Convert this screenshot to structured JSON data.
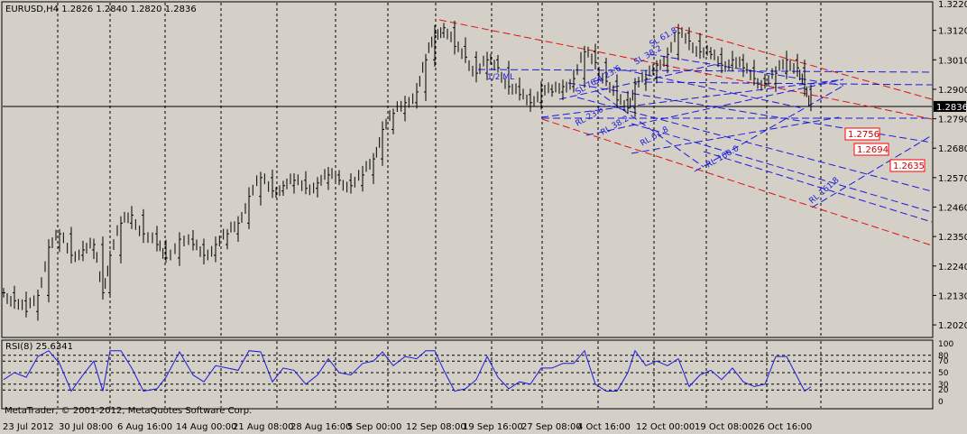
{
  "app": {
    "symbol_header": "EURUSD,H4 1.2826 1.2840 1.2820 1.2836",
    "copyright": "MetaTrader, © 2001-2012, MetaQuotes Software Corp."
  },
  "colors": {
    "background": "#d4d0c8",
    "plot_background": "#d4d0c8",
    "bars": "#000000",
    "grid": "#000000",
    "channel_red": "#e01010",
    "fib_blue": "#1a1adc",
    "rsi_line": "#1a1adc",
    "target_box": "#ff0000"
  },
  "chart_data": [
    {
      "type": "line",
      "name": "price",
      "symbol": "EURUSD",
      "timeframe": "H4",
      "ohlc": {
        "open": 1.2826,
        "high": 1.284,
        "low": 1.282,
        "close": 1.2836
      },
      "current_price": "1.2836",
      "y_ticks": [
        "1.3120",
        "1.3010",
        "1.2900",
        "1.2790",
        "1.2680",
        "1.2570",
        "1.2460",
        "1.2350",
        "1.2240",
        "1.2130",
        "1.2020"
      ],
      "y_top_label": "1.3220",
      "ylim": [
        1.2,
        1.322
      ],
      "x_ticks": [
        "23 Jul 2012",
        "30 Jul 08:00",
        "6 Aug 16:00",
        "14 Aug 00:00",
        "21 Aug 08:00",
        "28 Aug 16:00",
        "5 Sep 00:00",
        "12 Sep 08:00",
        "19 Sep 16:00",
        "27 Sep 08:00",
        "4 Oct 16:00",
        "12 Oct 00:00",
        "19 Oct 08:00",
        "26 Oct 16:00"
      ],
      "closes_approx": [
        [
          0,
          1.214
        ],
        [
          12,
          1.211
        ],
        [
          25,
          1.207
        ],
        [
          38,
          1.213
        ],
        [
          50,
          1.231
        ],
        [
          62,
          1.236
        ],
        [
          75,
          1.228
        ],
        [
          88,
          1.23
        ],
        [
          100,
          1.232
        ],
        [
          110,
          1.214
        ],
        [
          118,
          1.228
        ],
        [
          130,
          1.24
        ],
        [
          142,
          1.243
        ],
        [
          155,
          1.236
        ],
        [
          170,
          1.232
        ],
        [
          180,
          1.227
        ],
        [
          195,
          1.234
        ],
        [
          210,
          1.232
        ],
        [
          222,
          1.228
        ],
        [
          235,
          1.232
        ],
        [
          248,
          1.236
        ],
        [
          260,
          1.24
        ],
        [
          272,
          1.25
        ],
        [
          285,
          1.257
        ],
        [
          298,
          1.252
        ],
        [
          310,
          1.254
        ],
        [
          322,
          1.256
        ],
        [
          335,
          1.253
        ],
        [
          348,
          1.255
        ],
        [
          360,
          1.258
        ],
        [
          372,
          1.256
        ],
        [
          385,
          1.254
        ],
        [
          398,
          1.258
        ],
        [
          410,
          1.264
        ],
        [
          420,
          1.275
        ],
        [
          432,
          1.281
        ],
        [
          445,
          1.285
        ],
        [
          458,
          1.289
        ],
        [
          468,
          1.301
        ],
        [
          478,
          1.311
        ],
        [
          488,
          1.313
        ],
        [
          500,
          1.306
        ],
        [
          512,
          1.302
        ],
        [
          524,
          1.296
        ],
        [
          536,
          1.301
        ],
        [
          548,
          1.298
        ],
        [
          560,
          1.291
        ],
        [
          572,
          1.288
        ],
        [
          584,
          1.285
        ],
        [
          596,
          1.29
        ],
        [
          608,
          1.289
        ],
        [
          620,
          1.291
        ],
        [
          632,
          1.294
        ],
        [
          644,
          1.304
        ],
        [
          656,
          1.3
        ],
        [
          668,
          1.293
        ],
        [
          680,
          1.286
        ],
        [
          692,
          1.283
        ],
        [
          700,
          1.292
        ],
        [
          712,
          1.294
        ],
        [
          724,
          1.299
        ],
        [
          736,
          1.303
        ],
        [
          748,
          1.311
        ],
        [
          760,
          1.308
        ],
        [
          772,
          1.304
        ],
        [
          784,
          1.303
        ],
        [
          796,
          1.299
        ],
        [
          808,
          1.301
        ],
        [
          820,
          1.298
        ],
        [
          832,
          1.294
        ],
        [
          844,
          1.292
        ],
        [
          856,
          1.296
        ],
        [
          868,
          1.301
        ],
        [
          880,
          1.298
        ],
        [
          888,
          1.29
        ],
        [
          895,
          1.2836
        ]
      ],
      "annotations": {
        "fib_labels": [
          "1/2 ML",
          "SL 61.8",
          "SL 38.2",
          "SL 23.6",
          "SL 76.4",
          "RL 23.6",
          "RL 38.2",
          "RL 61.8",
          "RL 100.0",
          "RL 161.8"
        ],
        "targets": [
          "1.2756",
          "1.2694",
          "1.2635"
        ]
      }
    },
    {
      "type": "line",
      "name": "RSI(8)",
      "header": "RSI(8) 25.6341",
      "value": 25.6341,
      "y_ticks": [
        "100",
        "80",
        "70",
        "50",
        "30",
        "20",
        "0"
      ],
      "ylim": [
        0,
        100
      ]
    }
  ]
}
